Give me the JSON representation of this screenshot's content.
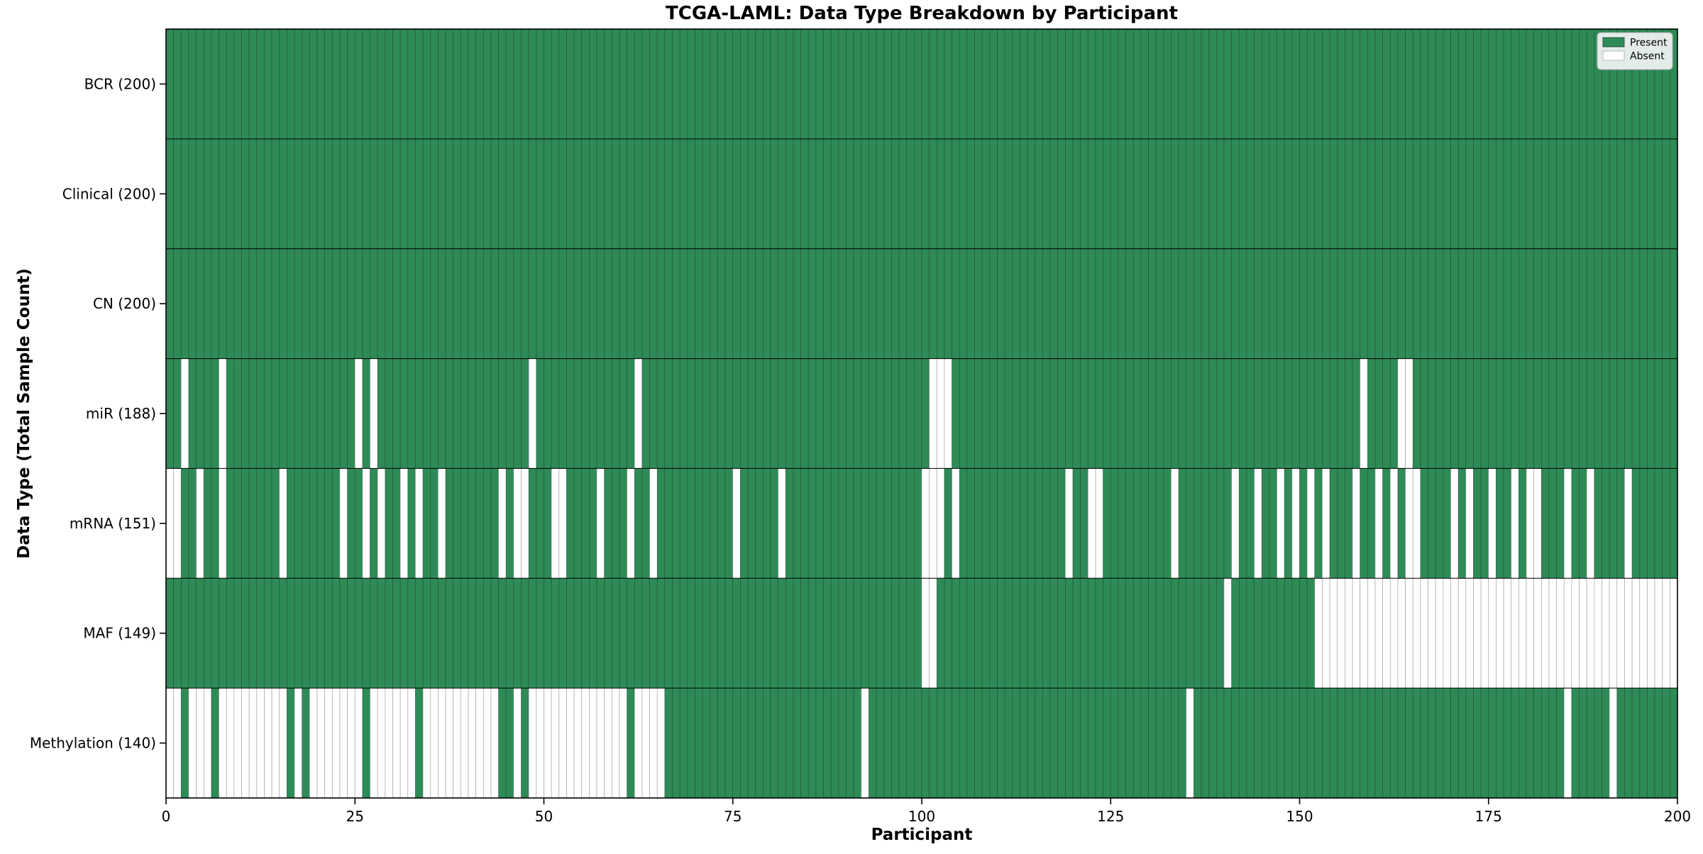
{
  "title": "TCGA-LAML: Data Type Breakdown by Participant",
  "xlabel": "Participant",
  "ylabel": "Data Type (Total Sample Count)",
  "legend": {
    "present_label": "Present",
    "absent_label": "Absent",
    "position": "upper right"
  },
  "colors": {
    "present": "#2e8b57",
    "absent": "#ffffff",
    "cell_edge_present": "#1a432c",
    "cell_edge_absent": "#9a9a9a",
    "row_divider": "#000000",
    "axis_spine": "#000000",
    "legend_bg": "#f4f4f4",
    "legend_border": "#b5b5b5"
  },
  "n_participants": 200,
  "x_ticks": [
    0,
    25,
    50,
    75,
    100,
    125,
    150,
    175,
    200
  ],
  "chart_data": {
    "type": "heatmap",
    "x_axis": {
      "label": "Participant",
      "range": [
        0,
        200
      ]
    },
    "y_axis": {
      "label": "Data Type (Total Sample Count)"
    },
    "grid": false,
    "legend_position": "upper right",
    "cell_states": [
      "Present",
      "Absent"
    ],
    "rows": [
      {
        "name": "BCR",
        "label": "BCR (200)",
        "present_count": 200,
        "absent_indices": []
      },
      {
        "name": "Clinical",
        "label": "Clinical (200)",
        "present_count": 200,
        "absent_indices": []
      },
      {
        "name": "CN",
        "label": "CN (200)",
        "present_count": 200,
        "absent_indices": []
      },
      {
        "name": "miR",
        "label": "miR (188)",
        "present_count": 188,
        "absent_indices": [
          2,
          7,
          25,
          27,
          48,
          62,
          101,
          102,
          103,
          158,
          163,
          164
        ]
      },
      {
        "name": "mRNA",
        "label": "mRNA (151)",
        "present_count": 151,
        "absent_indices": [
          0,
          1,
          4,
          7,
          15,
          23,
          26,
          28,
          31,
          33,
          36,
          44,
          46,
          47,
          51,
          52,
          57,
          61,
          64,
          75,
          81,
          100,
          101,
          102,
          104,
          119,
          122,
          123,
          133,
          141,
          144,
          147,
          149,
          151,
          153,
          157,
          160,
          162,
          164,
          165,
          170,
          172,
          175,
          178,
          180,
          181,
          185,
          188,
          193
        ]
      },
      {
        "name": "MAF",
        "label": "MAF (149)",
        "present_count": 149,
        "absent_indices": [
          100,
          101,
          140,
          152,
          153,
          154,
          155,
          156,
          157,
          158,
          159,
          160,
          161,
          162,
          163,
          164,
          165,
          166,
          167,
          168,
          169,
          170,
          171,
          172,
          173,
          174,
          175,
          176,
          177,
          178,
          179,
          180,
          181,
          182,
          183,
          184,
          185,
          186,
          187,
          188,
          189,
          190,
          191,
          192,
          193,
          194,
          195,
          196,
          197,
          198,
          199
        ]
      },
      {
        "name": "Methylation",
        "label": "Methylation (140)",
        "present_count": 140,
        "absent_indices": [
          0,
          1,
          3,
          4,
          5,
          7,
          8,
          9,
          10,
          11,
          12,
          13,
          14,
          15,
          17,
          19,
          20,
          21,
          22,
          23,
          24,
          25,
          27,
          28,
          29,
          30,
          31,
          32,
          34,
          35,
          36,
          37,
          38,
          39,
          40,
          41,
          42,
          43,
          46,
          48,
          49,
          50,
          51,
          52,
          53,
          54,
          55,
          56,
          57,
          58,
          59,
          60,
          62,
          63,
          64,
          65,
          92,
          135,
          185,
          191
        ]
      }
    ]
  }
}
